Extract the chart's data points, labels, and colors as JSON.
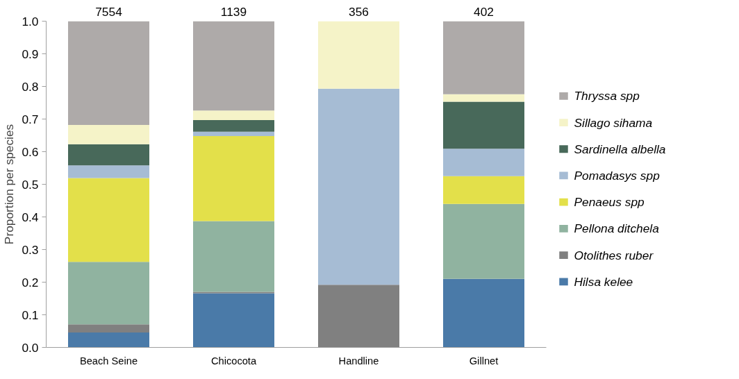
{
  "chart_data": {
    "type": "bar",
    "stacked": true,
    "ylabel": "Proportion per species",
    "categories": [
      "Beach Seine",
      "Chicocota",
      "Handline",
      "Gillnet"
    ],
    "series": [
      {
        "name": "Hilsa kelee",
        "color": "#4a7aa8",
        "values": [
          0.046,
          0.166,
          0,
          0.21
        ]
      },
      {
        "name": "Otolithes ruber",
        "color": "#808080",
        "values": [
          0.025,
          0.004,
          0.192,
          0
        ]
      },
      {
        "name": "Pellona ditchela",
        "color": "#90b3a0",
        "values": [
          0.191,
          0.217,
          0,
          0.23
        ]
      },
      {
        "name": "Penaeus spp",
        "color": "#e3e04a",
        "values": [
          0.257,
          0.261,
          0,
          0.085
        ]
      },
      {
        "name": "Pomadasys spp",
        "color": "#a6bcd4",
        "values": [
          0.039,
          0.013,
          0.601,
          0.084
        ]
      },
      {
        "name": "Sardinella albella",
        "color": "#48695a",
        "values": [
          0.065,
          0.036,
          0,
          0.144
        ]
      },
      {
        "name": "Sillago sihama",
        "color": "#f5f3c8",
        "values": [
          0.059,
          0.029,
          0.207,
          0.023
        ]
      },
      {
        "name": "Thryssa spp",
        "color": "#aeaaa9",
        "values": [
          0.318,
          0.274,
          0,
          0.224
        ]
      }
    ],
    "annotations": [
      "7554",
      "1139",
      "356",
      "402"
    ],
    "ylim": [
      0,
      1.0
    ],
    "yticks": [
      {
        "value": 0,
        "label": "0.0"
      },
      0.1,
      0.2,
      0.3,
      0.4,
      0.5,
      0.6,
      0.7,
      0.8,
      0.9,
      {
        "value": 1.0,
        "label": "1.0"
      }
    ],
    "legend": "right",
    "grid": false
  }
}
